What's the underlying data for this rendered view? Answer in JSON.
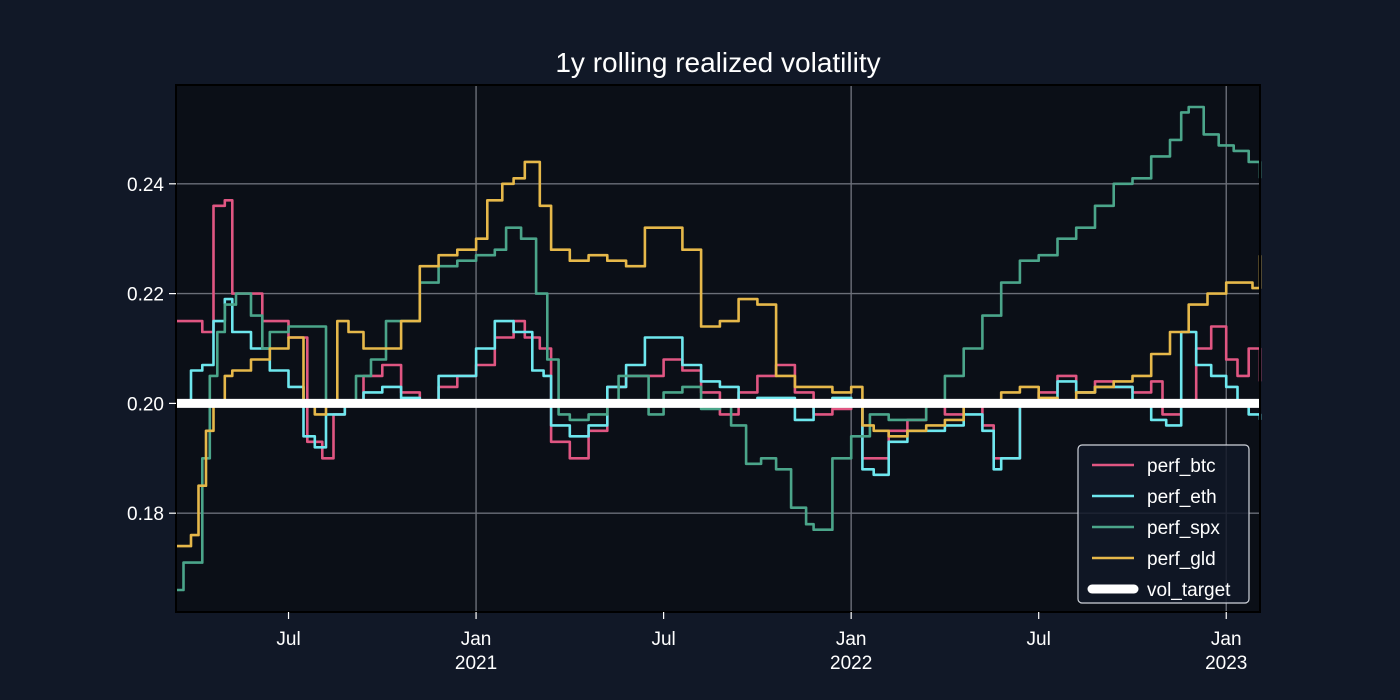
{
  "chart_data": {
    "type": "line",
    "title": "1y rolling realized volatility",
    "xlabel": "",
    "ylabel": "",
    "x_range": [
      2020.2,
      2023.09
    ],
    "ylim": [
      0.162,
      0.258
    ],
    "grid": true,
    "legend_position": "lower-right",
    "y_ticks": [
      {
        "value": 0.18,
        "label": "0.18"
      },
      {
        "value": 0.2,
        "label": "0.20"
      },
      {
        "value": 0.22,
        "label": "0.22"
      },
      {
        "value": 0.24,
        "label": "0.24"
      }
    ],
    "x_ticks": [
      {
        "x": 2020.5,
        "label": "Jul",
        "sublabel": ""
      },
      {
        "x": 2021.0,
        "label": "Jan",
        "sublabel": "2021"
      },
      {
        "x": 2021.5,
        "label": "Jul",
        "sublabel": ""
      },
      {
        "x": 2022.0,
        "label": "Jan",
        "sublabel": "2022"
      },
      {
        "x": 2022.5,
        "label": "Jul",
        "sublabel": ""
      },
      {
        "x": 2023.0,
        "label": "Jan",
        "sublabel": "2023"
      }
    ],
    "series": [
      {
        "name": "perf_btc",
        "color": "#e05682",
        "x": [
          2020.2,
          2020.25,
          2020.27,
          2020.3,
          2020.33,
          2020.35,
          2020.38,
          2020.43,
          2020.5,
          2020.55,
          2020.59,
          2020.62,
          2020.65,
          2020.7,
          2020.75,
          2020.8,
          2020.85,
          2020.9,
          2020.95,
          2021.0,
          2021.05,
          2021.1,
          2021.13,
          2021.17,
          2021.2,
          2021.25,
          2021.3,
          2021.35,
          2021.4,
          2021.45,
          2021.5,
          2021.55,
          2021.6,
          2021.65,
          2021.7,
          2021.75,
          2021.8,
          2021.85,
          2021.9,
          2021.95,
          2022.0,
          2022.03,
          2022.06,
          2022.1,
          2022.15,
          2022.2,
          2022.25,
          2022.3,
          2022.35,
          2022.38,
          2022.4,
          2022.45,
          2022.5,
          2022.55,
          2022.6,
          2022.65,
          2022.7,
          2022.75,
          2022.8,
          2022.83,
          2022.88,
          2022.92,
          2022.96,
          2023.0,
          2023.03,
          2023.06,
          2023.09
        ],
        "y": [
          0.215,
          0.215,
          0.213,
          0.236,
          0.237,
          0.22,
          0.22,
          0.215,
          0.212,
          0.193,
          0.19,
          0.198,
          0.2,
          0.205,
          0.207,
          0.202,
          0.2,
          0.203,
          0.205,
          0.207,
          0.212,
          0.215,
          0.212,
          0.21,
          0.193,
          0.19,
          0.195,
          0.203,
          0.205,
          0.205,
          0.208,
          0.206,
          0.202,
          0.198,
          0.202,
          0.205,
          0.207,
          0.202,
          0.198,
          0.199,
          0.2,
          0.19,
          0.19,
          0.195,
          0.197,
          0.2,
          0.198,
          0.2,
          0.196,
          0.19,
          0.19,
          0.2,
          0.202,
          0.205,
          0.202,
          0.204,
          0.203,
          0.202,
          0.204,
          0.198,
          0.2,
          0.21,
          0.214,
          0.208,
          0.205,
          0.21,
          0.204
        ]
      },
      {
        "name": "perf_eth",
        "color": "#6ee7ee",
        "x": [
          2020.2,
          2020.22,
          2020.24,
          2020.27,
          2020.3,
          2020.33,
          2020.35,
          2020.4,
          2020.45,
          2020.5,
          2020.54,
          2020.57,
          2020.6,
          2020.65,
          2020.7,
          2020.75,
          2020.8,
          2020.85,
          2020.9,
          2020.95,
          2021.0,
          2021.05,
          2021.1,
          2021.15,
          2021.18,
          2021.2,
          2021.25,
          2021.3,
          2021.35,
          2021.4,
          2021.45,
          2021.5,
          2021.55,
          2021.6,
          2021.65,
          2021.7,
          2021.75,
          2021.8,
          2021.85,
          2021.9,
          2021.95,
          2022.0,
          2022.03,
          2022.06,
          2022.1,
          2022.15,
          2022.2,
          2022.25,
          2022.3,
          2022.35,
          2022.38,
          2022.4,
          2022.45,
          2022.5,
          2022.55,
          2022.6,
          2022.65,
          2022.7,
          2022.75,
          2022.8,
          2022.84,
          2022.88,
          2022.92,
          2022.96,
          2023.0,
          2023.03,
          2023.06,
          2023.09
        ],
        "y": [
          0.2,
          0.2,
          0.206,
          0.207,
          0.215,
          0.219,
          0.213,
          0.21,
          0.206,
          0.203,
          0.194,
          0.192,
          0.198,
          0.2,
          0.202,
          0.203,
          0.201,
          0.2,
          0.205,
          0.205,
          0.21,
          0.215,
          0.213,
          0.206,
          0.205,
          0.196,
          0.194,
          0.196,
          0.203,
          0.207,
          0.212,
          0.212,
          0.207,
          0.204,
          0.203,
          0.2,
          0.201,
          0.201,
          0.197,
          0.2,
          0.201,
          0.2,
          0.188,
          0.187,
          0.193,
          0.195,
          0.195,
          0.196,
          0.198,
          0.195,
          0.188,
          0.19,
          0.2,
          0.2,
          0.204,
          0.202,
          0.203,
          0.203,
          0.2,
          0.197,
          0.196,
          0.213,
          0.207,
          0.205,
          0.203,
          0.2,
          0.198,
          0.197
        ]
      },
      {
        "name": "perf_spx",
        "color": "#4ba58a",
        "x": [
          2020.2,
          2020.22,
          2020.24,
          2020.27,
          2020.29,
          2020.31,
          2020.33,
          2020.36,
          2020.4,
          2020.43,
          2020.45,
          2020.5,
          2020.55,
          2020.6,
          2020.64,
          2020.68,
          2020.72,
          2020.76,
          2020.8,
          2020.85,
          2020.9,
          2020.95,
          2021.0,
          2021.05,
          2021.08,
          2021.12,
          2021.16,
          2021.19,
          2021.22,
          2021.25,
          2021.3,
          2021.35,
          2021.38,
          2021.42,
          2021.46,
          2021.5,
          2021.55,
          2021.6,
          2021.65,
          2021.68,
          2021.72,
          2021.76,
          2021.8,
          2021.84,
          2021.88,
          2021.9,
          2021.95,
          2022.0,
          2022.05,
          2022.1,
          2022.15,
          2022.2,
          2022.25,
          2022.3,
          2022.35,
          2022.4,
          2022.45,
          2022.5,
          2022.55,
          2022.6,
          2022.65,
          2022.7,
          2022.75,
          2022.8,
          2022.85,
          2022.88,
          2022.9,
          2022.94,
          2022.98,
          2023.02,
          2023.06,
          2023.09
        ],
        "y": [
          0.166,
          0.171,
          0.171,
          0.19,
          0.205,
          0.213,
          0.218,
          0.22,
          0.216,
          0.21,
          0.213,
          0.214,
          0.214,
          0.2,
          0.2,
          0.205,
          0.208,
          0.215,
          0.215,
          0.222,
          0.225,
          0.226,
          0.227,
          0.228,
          0.232,
          0.23,
          0.22,
          0.208,
          0.198,
          0.197,
          0.198,
          0.2,
          0.205,
          0.205,
          0.198,
          0.202,
          0.203,
          0.199,
          0.2,
          0.196,
          0.189,
          0.19,
          0.188,
          0.181,
          0.178,
          0.177,
          0.19,
          0.194,
          0.198,
          0.197,
          0.197,
          0.2,
          0.205,
          0.21,
          0.216,
          0.222,
          0.226,
          0.227,
          0.23,
          0.232,
          0.236,
          0.24,
          0.241,
          0.245,
          0.248,
          0.253,
          0.254,
          0.249,
          0.247,
          0.246,
          0.244,
          0.241
        ]
      },
      {
        "name": "perf_gld",
        "color": "#e6b84a",
        "x": [
          2020.2,
          2020.24,
          2020.26,
          2020.28,
          2020.3,
          2020.33,
          2020.35,
          2020.4,
          2020.45,
          2020.5,
          2020.54,
          2020.57,
          2020.6,
          2020.63,
          2020.66,
          2020.7,
          2020.75,
          2020.8,
          2020.85,
          2020.9,
          2020.95,
          2021.0,
          2021.03,
          2021.07,
          2021.1,
          2021.13,
          2021.17,
          2021.2,
          2021.25,
          2021.3,
          2021.35,
          2021.4,
          2021.45,
          2021.5,
          2021.55,
          2021.6,
          2021.65,
          2021.7,
          2021.75,
          2021.8,
          2021.85,
          2021.9,
          2021.95,
          2022.0,
          2022.03,
          2022.06,
          2022.1,
          2022.15,
          2022.2,
          2022.25,
          2022.3,
          2022.35,
          2022.4,
          2022.45,
          2022.5,
          2022.55,
          2022.6,
          2022.65,
          2022.7,
          2022.75,
          2022.8,
          2022.85,
          2022.9,
          2022.95,
          2023.0,
          2023.04,
          2023.07,
          2023.09
        ],
        "y": [
          0.174,
          0.176,
          0.185,
          0.195,
          0.2,
          0.205,
          0.206,
          0.208,
          0.21,
          0.212,
          0.2,
          0.198,
          0.2,
          0.215,
          0.213,
          0.21,
          0.21,
          0.215,
          0.225,
          0.227,
          0.228,
          0.23,
          0.237,
          0.24,
          0.241,
          0.244,
          0.236,
          0.228,
          0.226,
          0.227,
          0.226,
          0.225,
          0.232,
          0.232,
          0.228,
          0.214,
          0.215,
          0.219,
          0.218,
          0.205,
          0.203,
          0.203,
          0.202,
          0.203,
          0.196,
          0.195,
          0.194,
          0.195,
          0.196,
          0.197,
          0.2,
          0.2,
          0.202,
          0.203,
          0.201,
          0.2,
          0.202,
          0.203,
          0.204,
          0.205,
          0.209,
          0.213,
          0.218,
          0.22,
          0.222,
          0.222,
          0.221,
          0.227
        ]
      },
      {
        "name": "vol_target",
        "color": "#ffffff",
        "x": [
          2020.2,
          2023.09
        ],
        "y": [
          0.2,
          0.2
        ]
      }
    ]
  }
}
